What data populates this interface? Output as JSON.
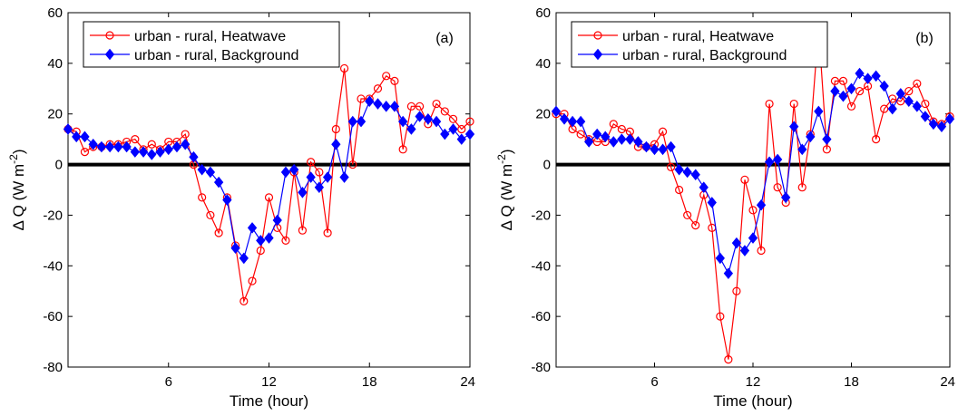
{
  "chart_data": [
    {
      "type": "line",
      "panel_label": "(a)",
      "xlabel": "Time (hour)",
      "ylabel_main": "Δ Q (W m",
      "ylabel_sup": "-2",
      "ylabel_tail": ")",
      "xlim": [
        0,
        24
      ],
      "ylim": [
        -80,
        60
      ],
      "xticks": [
        6,
        12,
        18,
        24
      ],
      "yticks": [
        -80,
        -60,
        -40,
        -20,
        0,
        20,
        40,
        60
      ],
      "grid": false,
      "legend_position": "top-left",
      "zero_line": true,
      "series": [
        {
          "name": "urban - rural, Heatwave",
          "color": "#ff0000",
          "marker": "circle",
          "x": [
            0,
            0.5,
            1,
            1.5,
            2,
            2.5,
            3,
            3.5,
            4,
            4.5,
            5,
            5.5,
            6,
            6.5,
            7,
            7.5,
            8,
            8.5,
            9,
            9.5,
            10,
            10.5,
            11,
            11.5,
            12,
            12.5,
            13,
            13.5,
            14,
            14.5,
            15,
            15.5,
            16,
            16.5,
            17,
            17.5,
            18,
            18.5,
            19,
            19.5,
            20,
            20.5,
            21,
            21.5,
            22,
            22.5,
            23,
            23.5,
            24
          ],
          "y": [
            14,
            13,
            5,
            7,
            7,
            8,
            8,
            9,
            10,
            6,
            8,
            6,
            9,
            9,
            12,
            0,
            -13,
            -20,
            -27,
            -13,
            -32,
            -54,
            -46,
            -34,
            -13,
            -25,
            -30,
            -3,
            -26,
            1,
            -3,
            -27,
            14,
            38,
            0,
            26,
            26,
            30,
            35,
            33,
            6,
            23,
            23,
            16,
            24,
            21,
            18,
            14,
            17
          ]
        },
        {
          "name": "urban - rural, Background",
          "color": "#0000ff",
          "marker": "diamond",
          "x": [
            0,
            0.5,
            1,
            1.5,
            2,
            2.5,
            3,
            3.5,
            4,
            4.5,
            5,
            5.5,
            6,
            6.5,
            7,
            7.5,
            8,
            8.5,
            9,
            9.5,
            10,
            10.5,
            11,
            11.5,
            12,
            12.5,
            13,
            13.5,
            14,
            14.5,
            15,
            15.5,
            16,
            16.5,
            17,
            17.5,
            18,
            18.5,
            19,
            19.5,
            20,
            20.5,
            21,
            21.5,
            22,
            22.5,
            23,
            23.5,
            24
          ],
          "y": [
            14,
            11,
            11,
            8,
            7,
            7,
            7,
            7,
            5,
            5,
            4,
            5,
            6,
            7,
            8,
            3,
            -2,
            -3,
            -7,
            -14,
            -33,
            -37,
            -25,
            -30,
            -29,
            -22,
            -3,
            -2,
            -11,
            -5,
            -9,
            -5,
            8,
            -5,
            17,
            17,
            25,
            24,
            23,
            23,
            17,
            14,
            19,
            18,
            17,
            12,
            14,
            10,
            12
          ]
        }
      ]
    },
    {
      "type": "line",
      "panel_label": "(b)",
      "xlabel": "Time (hour)",
      "ylabel_main": "Δ Q (W m",
      "ylabel_sup": "-2",
      "ylabel_tail": ")",
      "xlim": [
        0,
        24
      ],
      "ylim": [
        -80,
        60
      ],
      "xticks": [
        6,
        12,
        18,
        24
      ],
      "yticks": [
        -80,
        -60,
        -40,
        -20,
        0,
        20,
        40,
        60
      ],
      "grid": false,
      "legend_position": "top-left",
      "zero_line": true,
      "series": [
        {
          "name": "urban - rural, Heatwave",
          "color": "#ff0000",
          "marker": "circle",
          "x": [
            0,
            0.5,
            1,
            1.5,
            2,
            2.5,
            3,
            3.5,
            4,
            4.5,
            5,
            5.5,
            6,
            6.5,
            7,
            7.5,
            8,
            8.5,
            9,
            9.5,
            10,
            10.5,
            11,
            11.5,
            12,
            12.5,
            13,
            13.5,
            14,
            14.5,
            15,
            15.5,
            16,
            16.5,
            17,
            17.5,
            18,
            18.5,
            19,
            19.5,
            20,
            20.5,
            21,
            21.5,
            22,
            22.5,
            23,
            23.5,
            24
          ],
          "y": [
            20,
            20,
            14,
            12,
            10,
            9,
            9,
            16,
            14,
            13,
            7,
            7,
            8,
            13,
            -1,
            -10,
            -20,
            -24,
            -12,
            -25,
            -60,
            -77,
            -50,
            -6,
            -18,
            -34,
            24,
            -9,
            -15,
            24,
            -9,
            12,
            54,
            6,
            33,
            33,
            23,
            29,
            31,
            10,
            22,
            26,
            25,
            29,
            32,
            24,
            17,
            16,
            19
          ]
        },
        {
          "name": "urban - rural, Background",
          "color": "#0000ff",
          "marker": "diamond",
          "x": [
            0,
            0.5,
            1,
            1.5,
            2,
            2.5,
            3,
            3.5,
            4,
            4.5,
            5,
            5.5,
            6,
            6.5,
            7,
            7.5,
            8,
            8.5,
            9,
            9.5,
            10,
            10.5,
            11,
            11.5,
            12,
            12.5,
            13,
            13.5,
            14,
            14.5,
            15,
            15.5,
            16,
            16.5,
            17,
            17.5,
            18,
            18.5,
            19,
            19.5,
            20,
            20.5,
            21,
            21.5,
            22,
            22.5,
            23,
            23.5,
            24
          ],
          "y": [
            21,
            18,
            17,
            17,
            9,
            12,
            11,
            9,
            10,
            10,
            9,
            7,
            6,
            6,
            7,
            -2,
            -3,
            -4,
            -9,
            -15,
            -37,
            -43,
            -31,
            -34,
            -29,
            -16,
            1,
            2,
            -13,
            15,
            6,
            11,
            21,
            10,
            29,
            27,
            30,
            36,
            34,
            35,
            31,
            22,
            28,
            25,
            23,
            19,
            16,
            15,
            18
          ]
        }
      ]
    }
  ]
}
